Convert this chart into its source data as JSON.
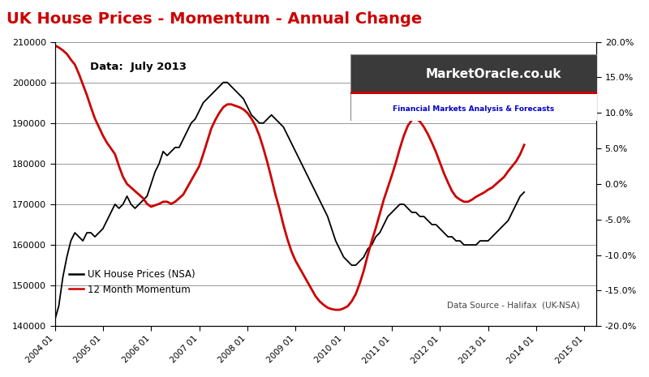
{
  "title": "UK House Prices - Momentum - Annual Change",
  "title_color": "#CC0000",
  "subtitle": "Data:  July 2013",
  "watermark_line1": "MarketOracle.co.uk",
  "watermark_line2": "Financial Markets Analysis & Forecasts",
  "source_text": "Data Source - Halifax  (UK-NSA)",
  "legend_price": "UK House Prices (NSA)",
  "legend_momentum": "12 Month Momentum",
  "background_color": "#FFFFFF",
  "plot_bg_color": "#FFFFFF",
  "grid_color": "#888888",
  "price_color": "#000000",
  "momentum_color": "#CC0000",
  "yleft_min": 140000,
  "yleft_max": 210000,
  "yleft_ticks": [
    140000,
    150000,
    160000,
    170000,
    180000,
    190000,
    200000,
    210000
  ],
  "yright_min": -0.2,
  "yright_max": 0.2,
  "yright_ticks": [
    -0.2,
    -0.15,
    -0.1,
    -0.05,
    0.0,
    0.05,
    0.1,
    0.15,
    0.2
  ],
  "xtick_labels": [
    "2004 01",
    "2005 01",
    "2006 01",
    "2007 01",
    "2008 01",
    "2009 01",
    "2010 01",
    "2011 01",
    "2012 01",
    "2013 01",
    "2014 01",
    "2015 01"
  ],
  "house_prices": [
    141500,
    145000,
    152000,
    157000,
    161000,
    163000,
    162000,
    161000,
    163000,
    163000,
    162000,
    163000,
    164000,
    166000,
    168000,
    170000,
    169000,
    170000,
    172000,
    170000,
    169000,
    170000,
    171000,
    172000,
    175000,
    178000,
    180000,
    183000,
    182000,
    183000,
    184000,
    184000,
    186000,
    188000,
    190000,
    191000,
    193000,
    195000,
    196000,
    197000,
    198000,
    199000,
    200000,
    200000,
    199000,
    198000,
    197000,
    196000,
    194000,
    192000,
    191000,
    190000,
    190000,
    191000,
    192000,
    191000,
    190000,
    189000,
    187000,
    185000,
    183000,
    181000,
    179000,
    177000,
    175000,
    173000,
    171000,
    169000,
    167000,
    164000,
    161000,
    159000,
    157000,
    156000,
    155000,
    155000,
    156000,
    157000,
    159000,
    160000,
    162000,
    163000,
    165000,
    167000,
    168000,
    169000,
    170000,
    170000,
    169000,
    168000,
    168000,
    167000,
    167000,
    166000,
    165000,
    165000,
    164000,
    163000,
    162000,
    162000,
    161000,
    161000,
    160000,
    160000,
    160000,
    160000,
    161000,
    161000,
    161000,
    162000,
    163000,
    164000,
    165000,
    166000,
    168000,
    170000,
    172000,
    173000
  ],
  "momentum": [
    0.195,
    0.192,
    0.188,
    0.183,
    0.175,
    0.168,
    0.155,
    0.14,
    0.125,
    0.108,
    0.092,
    0.08,
    0.068,
    0.058,
    0.05,
    0.042,
    0.025,
    0.01,
    0.0,
    -0.005,
    -0.01,
    -0.015,
    -0.02,
    -0.028,
    -0.032,
    -0.03,
    -0.028,
    -0.025,
    -0.025,
    -0.028,
    -0.025,
    -0.02,
    -0.015,
    -0.005,
    0.005,
    0.015,
    0.025,
    0.042,
    0.06,
    0.078,
    0.09,
    0.1,
    0.108,
    0.112,
    0.112,
    0.11,
    0.108,
    0.105,
    0.1,
    0.092,
    0.082,
    0.068,
    0.05,
    0.03,
    0.008,
    -0.015,
    -0.035,
    -0.058,
    -0.078,
    -0.095,
    -0.108,
    -0.118,
    -0.128,
    -0.138,
    -0.148,
    -0.158,
    -0.165,
    -0.17,
    -0.174,
    -0.176,
    -0.177,
    -0.177,
    -0.175,
    -0.172,
    -0.165,
    -0.155,
    -0.14,
    -0.122,
    -0.1,
    -0.08,
    -0.062,
    -0.042,
    -0.022,
    -0.005,
    0.012,
    0.03,
    0.05,
    0.068,
    0.082,
    0.09,
    0.092,
    0.088,
    0.08,
    0.07,
    0.058,
    0.045,
    0.03,
    0.015,
    0.002,
    -0.01,
    -0.018,
    -0.022,
    -0.025,
    -0.025,
    -0.022,
    -0.018,
    -0.015,
    -0.012,
    -0.008,
    -0.005,
    0.0,
    0.005,
    0.01,
    0.018,
    0.025,
    0.032,
    0.042,
    0.055
  ],
  "n_points": 118
}
